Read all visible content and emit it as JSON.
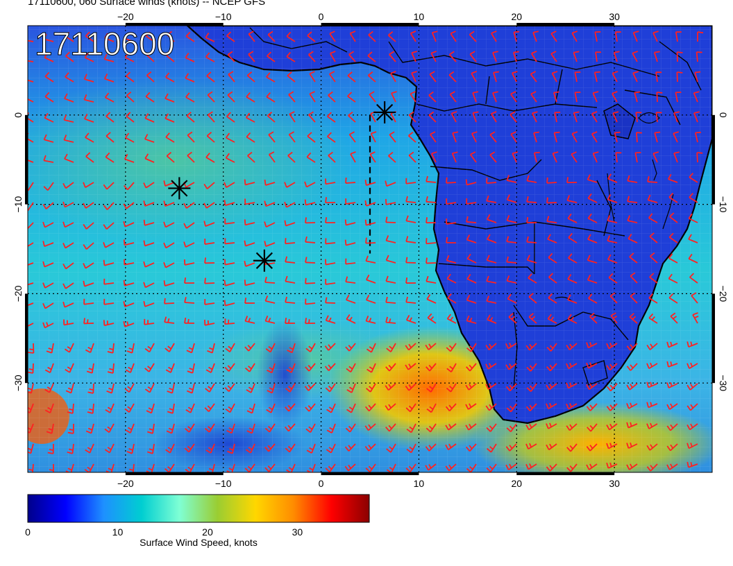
{
  "title": "17110600, 060 Surface winds (knots) -- NCEP GFS",
  "overlay_label": "17110600",
  "map": {
    "lon_range": [
      -30,
      40
    ],
    "lat_range": [
      -40,
      10
    ],
    "lon_ticks": [
      "−20",
      "−10",
      "0",
      "10",
      "20",
      "30"
    ],
    "lat_ticks": [
      "0",
      "−10",
      "−20",
      "−30"
    ],
    "gridlines": "dotted",
    "barb_color": "#ff2020",
    "storm_markers": [
      {
        "lon": 6.5,
        "lat": 0.3
      },
      {
        "lon": -14.5,
        "lat": -8.2
      },
      {
        "lon": -5.8,
        "lat": -16.3
      }
    ],
    "track_line": {
      "from": {
        "lon": 5.0,
        "lat": 0.0
      },
      "to": {
        "lon": 5.0,
        "lat": -15.5
      }
    }
  },
  "colorbar": {
    "label": "Surface Wind Speed, knots",
    "range": [
      0,
      38
    ],
    "ticks": [
      "0",
      "10",
      "20",
      "30"
    ],
    "colors": [
      "#00008b",
      "#0000ff",
      "#1e90ff",
      "#00ced1",
      "#7fffd4",
      "#9acd32",
      "#ffd700",
      "#ff8c00",
      "#ff0000",
      "#8b0000"
    ]
  }
}
